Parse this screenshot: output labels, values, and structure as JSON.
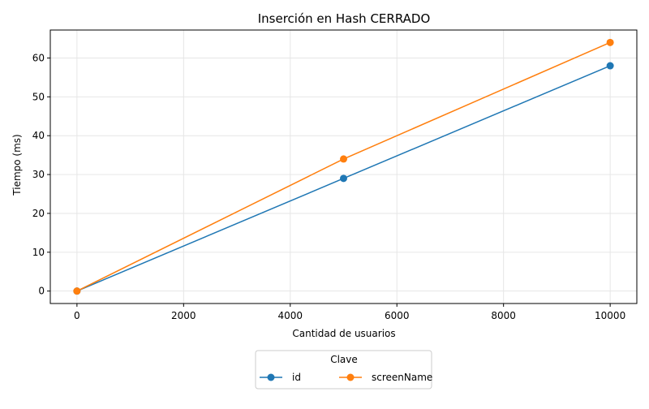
{
  "chart_data": {
    "type": "line",
    "title": "Inserción en Hash CERRADO",
    "xlabel": "Cantidad de usuarios",
    "ylabel": "Tiempo (ms)",
    "x": [
      0,
      5000,
      10000
    ],
    "series": [
      {
        "name": "id",
        "values": [
          0,
          29,
          58
        ],
        "color": "#1f77b4"
      },
      {
        "name": "screenName",
        "values": [
          0,
          34,
          64
        ],
        "color": "#ff7f0e"
      }
    ],
    "xlim": [
      -500,
      10500
    ],
    "ylim": [
      -3.2,
      67.2
    ],
    "xticks": [
      0,
      2000,
      4000,
      6000,
      8000,
      10000
    ],
    "xtick_labels": [
      "0",
      "2000",
      "4000",
      "6000",
      "8000",
      "10000"
    ],
    "yticks": [
      0,
      10,
      20,
      30,
      40,
      50,
      60
    ],
    "ytick_labels": [
      "0",
      "10",
      "20",
      "30",
      "40",
      "50",
      "60"
    ],
    "grid": true,
    "legend": {
      "title": "Clave",
      "placement": "bottom-center, below plot"
    },
    "marker": "circle"
  }
}
